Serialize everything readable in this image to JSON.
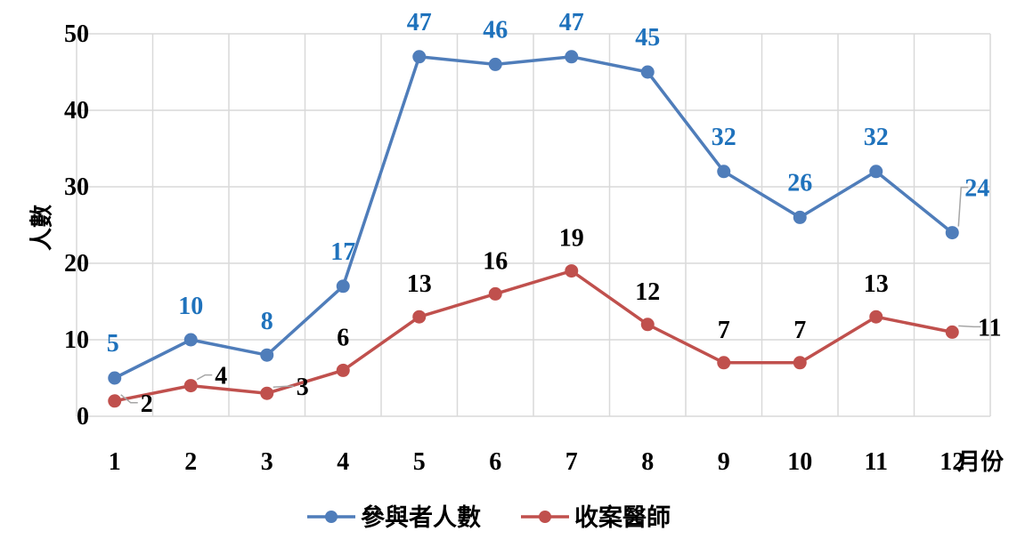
{
  "chart_data": {
    "type": "line",
    "categories": [
      "1",
      "2",
      "3",
      "4",
      "5",
      "6",
      "7",
      "8",
      "9",
      "10",
      "11",
      "12"
    ],
    "xlabel": "月份",
    "ylabel": "人數",
    "ylim": [
      0,
      50
    ],
    "yticks": [
      "0",
      "10",
      "20",
      "30",
      "40",
      "50"
    ],
    "grid": true,
    "legend": "bottom",
    "series": [
      {
        "name": "參與者人數",
        "color": "#4F7DBA",
        "label_color": "#1F72BC",
        "values": [
          5,
          10,
          8,
          17,
          47,
          46,
          47,
          45,
          32,
          26,
          32,
          24
        ]
      },
      {
        "name": "收案醫師",
        "color": "#C0504D",
        "label_color": "#000000",
        "values": [
          2,
          4,
          3,
          6,
          13,
          16,
          19,
          12,
          7,
          7,
          13,
          11
        ]
      }
    ]
  }
}
